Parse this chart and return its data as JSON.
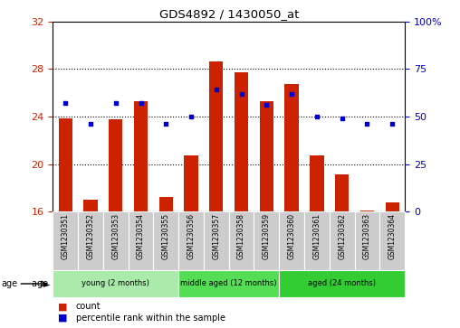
{
  "title": "GDS4892 / 1430050_at",
  "samples": [
    "GSM1230351",
    "GSM1230352",
    "GSM1230353",
    "GSM1230354",
    "GSM1230355",
    "GSM1230356",
    "GSM1230357",
    "GSM1230358",
    "GSM1230359",
    "GSM1230360",
    "GSM1230361",
    "GSM1230362",
    "GSM1230363",
    "GSM1230364"
  ],
  "count_values": [
    23.85,
    17.0,
    23.75,
    25.25,
    17.25,
    20.75,
    28.6,
    27.75,
    25.25,
    26.75,
    20.75,
    19.1,
    16.1,
    16.75
  ],
  "percentile_values": [
    57,
    46,
    57,
    57,
    46,
    50,
    64,
    62,
    56,
    62,
    50,
    49,
    46,
    46
  ],
  "ylim_left": [
    16,
    32
  ],
  "ylim_right": [
    0,
    100
  ],
  "yticks_left": [
    16,
    20,
    24,
    28,
    32
  ],
  "yticks_right": [
    0,
    25,
    50,
    75,
    100
  ],
  "bar_color": "#cc2200",
  "dot_color": "#0000cc",
  "bar_bottom": 16,
  "groups": [
    {
      "label": "young (2 months)",
      "start": 0,
      "end": 5,
      "color": "#aaeaaa"
    },
    {
      "label": "middle aged (12 months)",
      "start": 5,
      "end": 9,
      "color": "#55dd55"
    },
    {
      "label": "aged (24 months)",
      "start": 9,
      "end": 14,
      "color": "#33cc33"
    }
  ],
  "legend_count_label": "count",
  "legend_percentile_label": "percentile rank within the sample",
  "grid_color": "#000000",
  "plot_bg_color": "#ffffff",
  "tick_label_color_left": "#cc2200",
  "tick_label_color_right": "#0000cc",
  "title_color": "#000000",
  "cell_color": "#cccccc",
  "bar_width": 0.55
}
